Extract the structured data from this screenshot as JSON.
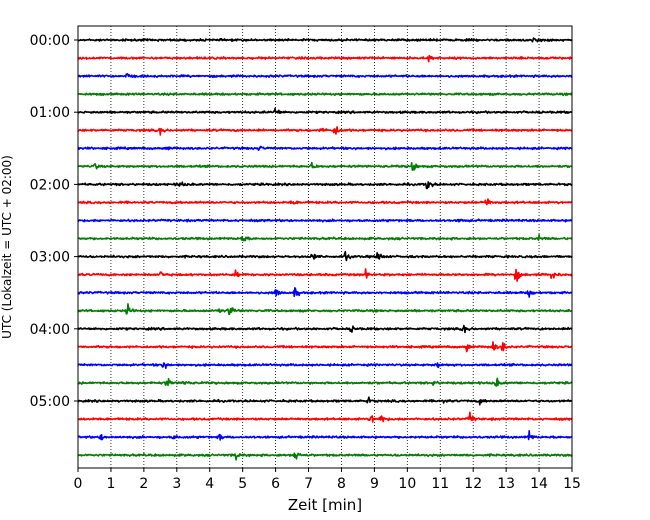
{
  "chart_data": {
    "type": "line",
    "title": "",
    "xlabel": "Zeit  [min]",
    "ylabel": "UTC (Lokalzeit = UTC + 02:00)",
    "xlim": [
      0,
      15
    ],
    "x_ticks": [
      0,
      1,
      2,
      3,
      4,
      5,
      6,
      7,
      8,
      9,
      10,
      11,
      12,
      13,
      14,
      15
    ],
    "x_tick_labels": [
      "0",
      "1",
      "2",
      "3",
      "4",
      "5",
      "6",
      "7",
      "8",
      "9",
      "10",
      "11",
      "12",
      "13",
      "14",
      "15"
    ],
    "y_tick_labels": [
      "00:00",
      "01:00",
      "02:00",
      "03:00",
      "04:00",
      "05:00"
    ],
    "y_tick_trace_index": [
      0,
      4,
      8,
      12,
      16,
      20
    ],
    "grid": {
      "x": true,
      "y": false,
      "style": "dotted"
    },
    "color_cycle": [
      "#000000",
      "#ff0000",
      "#0000ff",
      "#008000"
    ],
    "traces": [
      {
        "start": "00:00",
        "color": "#000000",
        "events": [
          [
            13.8,
            0.4
          ],
          [
            14.0,
            0.3
          ]
        ]
      },
      {
        "start": "00:15",
        "color": "#ff0000",
        "events": [
          [
            10.65,
            0.5
          ]
        ]
      },
      {
        "start": "00:30",
        "color": "#0000ff",
        "events": [
          [
            1.5,
            0.35
          ]
        ]
      },
      {
        "start": "00:45",
        "color": "#008000",
        "events": []
      },
      {
        "start": "01:00",
        "color": "#000000",
        "events": [
          [
            6.0,
            0.8
          ]
        ]
      },
      {
        "start": "01:15",
        "color": "#ff0000",
        "events": [
          [
            2.5,
            0.6
          ],
          [
            7.8,
            1.0
          ],
          [
            7.4,
            0.4
          ]
        ]
      },
      {
        "start": "01:30",
        "color": "#0000ff",
        "events": [
          [
            2.7,
            0.3
          ],
          [
            5.5,
            0.4
          ],
          [
            15.0,
            0.3
          ]
        ]
      },
      {
        "start": "01:45",
        "color": "#008000",
        "events": [
          [
            0.5,
            0.5
          ],
          [
            7.1,
            0.5
          ],
          [
            10.15,
            1.1
          ]
        ]
      },
      {
        "start": "02:00",
        "color": "#000000",
        "events": [
          [
            3.1,
            0.5
          ],
          [
            10.6,
            1.1
          ]
        ]
      },
      {
        "start": "02:15",
        "color": "#ff0000",
        "events": [
          [
            6.5,
            0.4
          ],
          [
            12.4,
            0.9
          ]
        ]
      },
      {
        "start": "02:30",
        "color": "#0000ff",
        "events": [
          [
            11.6,
            0.3
          ]
        ]
      },
      {
        "start": "02:45",
        "color": "#008000",
        "events": [
          [
            5.0,
            0.8
          ],
          [
            14.0,
            0.4
          ]
        ]
      },
      {
        "start": "03:00",
        "color": "#000000",
        "events": [
          [
            7.1,
            0.6
          ],
          [
            8.1,
            0.9
          ],
          [
            9.1,
            0.9
          ]
        ]
      },
      {
        "start": "03:15",
        "color": "#ff0000",
        "events": [
          [
            2.5,
            0.5
          ],
          [
            4.8,
            0.5
          ],
          [
            8.7,
            0.8
          ],
          [
            13.3,
            1.2
          ],
          [
            14.4,
            1.0
          ]
        ]
      },
      {
        "start": "03:30",
        "color": "#0000ff",
        "events": [
          [
            6.0,
            0.9
          ],
          [
            6.6,
            0.9
          ],
          [
            13.7,
            0.6
          ]
        ]
      },
      {
        "start": "03:45",
        "color": "#008000",
        "events": [
          [
            1.5,
            1.1
          ],
          [
            4.3,
            0.5
          ],
          [
            4.6,
            1.2
          ]
        ]
      },
      {
        "start": "04:00",
        "color": "#000000",
        "events": [
          [
            8.3,
            0.5
          ],
          [
            11.7,
            0.9
          ]
        ]
      },
      {
        "start": "04:15",
        "color": "#ff0000",
        "events": [
          [
            11.8,
            0.7
          ],
          [
            12.6,
            0.9
          ],
          [
            12.9,
            0.8
          ]
        ]
      },
      {
        "start": "04:30",
        "color": "#0000ff",
        "events": [
          [
            2.6,
            0.7
          ],
          [
            10.9,
            0.5
          ]
        ]
      },
      {
        "start": "04:45",
        "color": "#008000",
        "events": [
          [
            2.7,
            0.9
          ],
          [
            3.2,
            0.6
          ],
          [
            10.8,
            0.4
          ],
          [
            12.7,
            0.7
          ]
        ]
      },
      {
        "start": "05:00",
        "color": "#000000",
        "events": [
          [
            8.8,
            0.5
          ],
          [
            11.1,
            0.4
          ],
          [
            12.2,
            0.4
          ]
        ]
      },
      {
        "start": "05:15",
        "color": "#ff0000",
        "events": [
          [
            8.9,
            0.9
          ],
          [
            9.2,
            0.9
          ],
          [
            11.9,
            1.0
          ]
        ]
      },
      {
        "start": "05:30",
        "color": "#0000ff",
        "events": [
          [
            0.7,
            0.5
          ],
          [
            2.9,
            0.3
          ],
          [
            4.3,
            0.4
          ],
          [
            13.7,
            0.8
          ]
        ]
      },
      {
        "start": "05:45",
        "color": "#008000",
        "events": [
          [
            4.8,
            0.6
          ],
          [
            6.6,
            1.1
          ]
        ]
      }
    ]
  }
}
